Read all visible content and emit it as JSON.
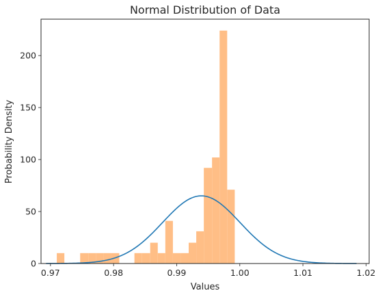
{
  "chart_data": {
    "type": "histogram",
    "title": "Normal Distribution of Data",
    "xlabel": "Values",
    "ylabel": "Probability Density",
    "xlim": [
      0.9685,
      1.0205
    ],
    "ylim": [
      0,
      235
    ],
    "xticks": [
      0.97,
      0.98,
      0.99,
      1.0,
      1.01,
      1.02
    ],
    "xtick_labels": [
      "0.97",
      "0.98",
      "0.99",
      "1.00",
      "1.01",
      "1.02"
    ],
    "yticks": [
      0,
      50,
      100,
      150,
      200
    ],
    "ytick_labels": [
      "0",
      "50",
      "100",
      "150",
      "200"
    ],
    "grid": false,
    "histogram": {
      "color": "#ffbe86",
      "bins": [
        {
          "x0": 0.971,
          "x1": 0.9722,
          "value": 10
        },
        {
          "x0": 0.9722,
          "x1": 0.9747,
          "value": 0
        },
        {
          "x0": 0.9747,
          "x1": 0.976,
          "value": 10
        },
        {
          "x0": 0.976,
          "x1": 0.9772,
          "value": 10
        },
        {
          "x0": 0.9772,
          "x1": 0.9784,
          "value": 10
        },
        {
          "x0": 0.9784,
          "x1": 0.9796,
          "value": 10
        },
        {
          "x0": 0.9796,
          "x1": 0.9809,
          "value": 10
        },
        {
          "x0": 0.9809,
          "x1": 0.9833,
          "value": 0
        },
        {
          "x0": 0.9833,
          "x1": 0.9845,
          "value": 10
        },
        {
          "x0": 0.9845,
          "x1": 0.9858,
          "value": 10
        },
        {
          "x0": 0.9858,
          "x1": 0.987,
          "value": 20
        },
        {
          "x0": 0.987,
          "x1": 0.9882,
          "value": 10
        },
        {
          "x0": 0.9882,
          "x1": 0.9894,
          "value": 41
        },
        {
          "x0": 0.9894,
          "x1": 0.9907,
          "value": 10
        },
        {
          "x0": 0.9907,
          "x1": 0.9919,
          "value": 10
        },
        {
          "x0": 0.9919,
          "x1": 0.9931,
          "value": 20
        },
        {
          "x0": 0.9931,
          "x1": 0.9943,
          "value": 31
        },
        {
          "x0": 0.9943,
          "x1": 0.9956,
          "value": 92
        },
        {
          "x0": 0.9956,
          "x1": 0.9968,
          "value": 102
        },
        {
          "x0": 0.9968,
          "x1": 0.998,
          "value": 224
        },
        {
          "x0": 0.998,
          "x1": 0.9992,
          "value": 71
        }
      ]
    },
    "curve": {
      "type": "normal-pdf",
      "color": "#1f77b4",
      "mean": 0.9939,
      "std": 0.00613,
      "x_range": [
        0.9693,
        1.0185
      ]
    }
  }
}
